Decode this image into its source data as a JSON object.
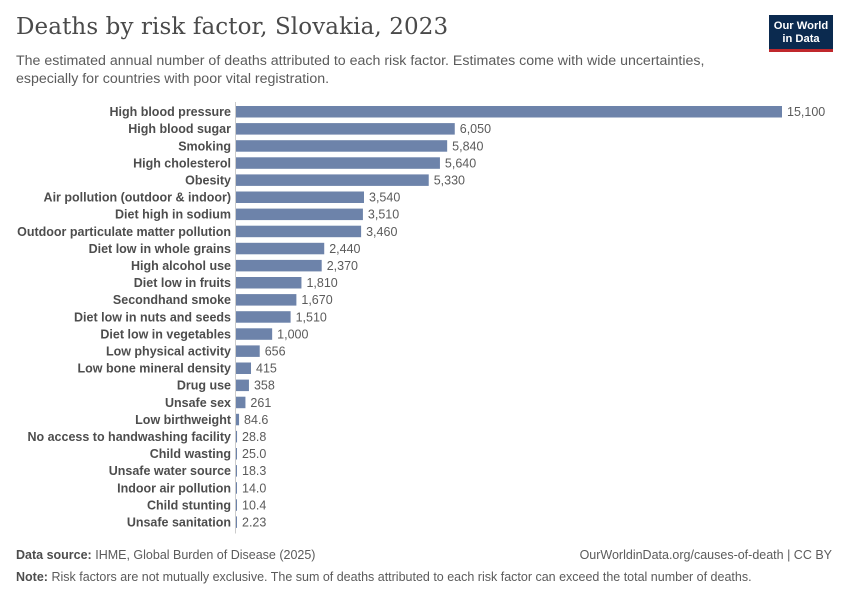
{
  "header": {
    "title": "Deaths by risk factor, Slovakia, 2023",
    "subtitle": "The estimated annual number of deaths attributed to each risk factor. Estimates come with wide uncertainties, especially for countries with poor vital registration."
  },
  "logo": {
    "line1": "Our World",
    "line2": "in Data",
    "bg_color": "#0b2a4f",
    "accent_color": "#c0282c"
  },
  "footer": {
    "source_label": "Data source:",
    "source_text": "IHME, Global Burden of Disease (2025)",
    "url": "OurWorldinData.org/causes-of-death | CC BY",
    "note_label": "Note:",
    "note_text": "Risk factors are not mutually exclusive. The sum of deaths attributed to each risk factor can exceed the total number of deaths."
  },
  "chart_data": {
    "type": "bar",
    "orientation": "horizontal",
    "bar_color": "#6d83aa",
    "xlim": [
      0,
      15100
    ],
    "grid": false,
    "categories": [
      "High blood pressure",
      "High blood sugar",
      "Smoking",
      "High cholesterol",
      "Obesity",
      "Air pollution (outdoor & indoor)",
      "Diet high in sodium",
      "Outdoor particulate matter pollution",
      "Diet low in whole grains",
      "High alcohol use",
      "Diet low in fruits",
      "Secondhand smoke",
      "Diet low in nuts and seeds",
      "Diet low in vegetables",
      "Low physical activity",
      "Low bone mineral density",
      "Drug use",
      "Unsafe sex",
      "Low birthweight",
      "No access to handwashing facility",
      "Child wasting",
      "Unsafe water source",
      "Indoor air pollution",
      "Child stunting",
      "Unsafe sanitation"
    ],
    "values": [
      15100,
      6050,
      5840,
      5640,
      5330,
      3540,
      3510,
      3460,
      2440,
      2370,
      1810,
      1670,
      1510,
      1000,
      656,
      415,
      358,
      261,
      84.6,
      28.8,
      25.0,
      18.3,
      14.0,
      10.4,
      2.23
    ],
    "value_labels": [
      "15,100",
      "6,050",
      "5,840",
      "5,640",
      "5,330",
      "3,540",
      "3,510",
      "3,460",
      "2,440",
      "2,370",
      "1,810",
      "1,670",
      "1,510",
      "1,000",
      "656",
      "415",
      "358",
      "261",
      "84.6",
      "28.8",
      "25.0",
      "18.3",
      "14.0",
      "10.4",
      "2.23"
    ]
  }
}
